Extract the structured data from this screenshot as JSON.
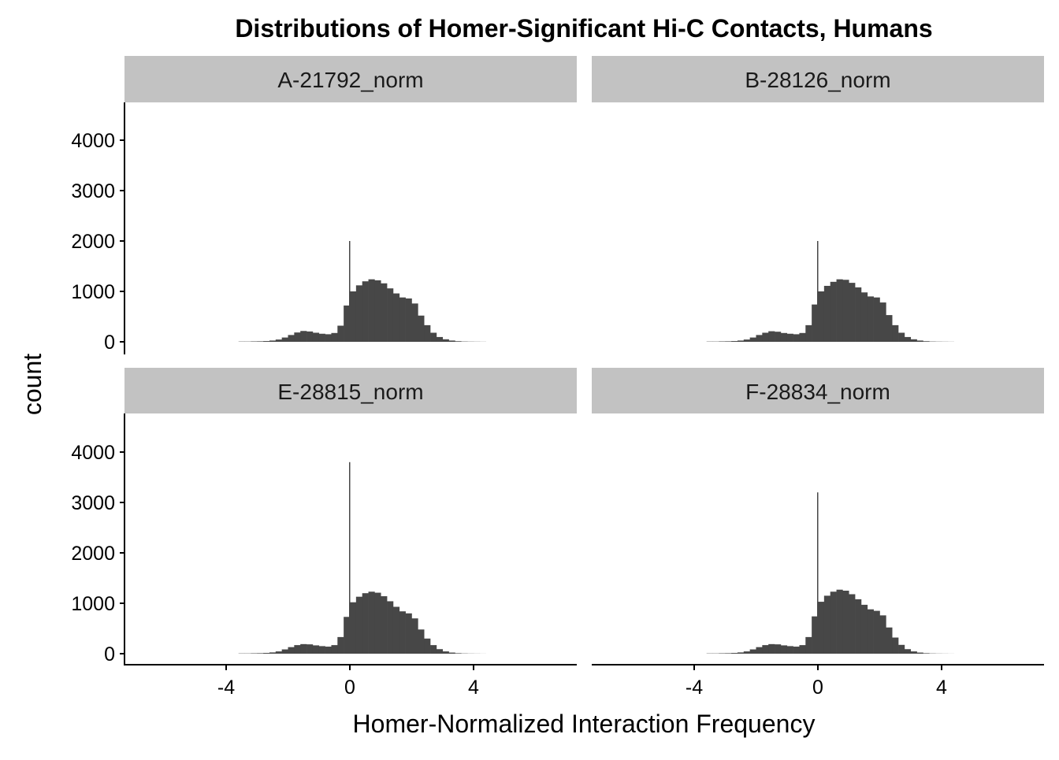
{
  "chart_data": {
    "type": "bar",
    "subtype": "faceted histogram",
    "title": "Distributions of Homer-Significant Hi-C Contacts, Humans",
    "xlabel": "Homer-Normalized Interaction Frequency",
    "ylabel": "count",
    "xlim": [
      -7.3,
      7.3
    ],
    "ylim": [
      0,
      4750
    ],
    "x_ticks": [
      -4,
      0,
      4
    ],
    "x_tick_labels": [
      "-4",
      "0",
      "4"
    ],
    "y_ticks": [
      0,
      1000,
      2000,
      3000,
      4000
    ],
    "y_tick_labels": [
      "0",
      "1000",
      "2000",
      "3000",
      "4000"
    ],
    "grid": false,
    "bar_color": "#474747",
    "strip_color": "#c2c2c2",
    "bin_start": -3.6,
    "bin_width": 0.2,
    "panels": [
      {
        "name": "A-21792_norm",
        "spike": {
          "x": 0,
          "count": 2000
        },
        "values": [
          5,
          5,
          8,
          10,
          15,
          25,
          45,
          85,
          135,
          185,
          215,
          205,
          180,
          160,
          150,
          175,
          320,
          720,
          1000,
          1120,
          1200,
          1240,
          1220,
          1160,
          1060,
          960,
          880,
          860,
          760,
          520,
          330,
          180,
          95,
          50,
          25,
          12,
          6,
          4,
          3,
          2
        ]
      },
      {
        "name": "B-28126_norm",
        "spike": {
          "x": 0,
          "count": 2000
        },
        "values": [
          5,
          5,
          8,
          10,
          15,
          25,
          45,
          85,
          135,
          180,
          210,
          200,
          175,
          160,
          150,
          175,
          330,
          740,
          1000,
          1110,
          1190,
          1240,
          1230,
          1170,
          1080,
          980,
          900,
          880,
          780,
          530,
          330,
          180,
          95,
          50,
          25,
          12,
          6,
          4,
          3,
          2
        ]
      },
      {
        "name": "E-28815_norm",
        "spike": {
          "x": 0,
          "count": 3800
        },
        "values": [
          5,
          5,
          8,
          10,
          15,
          25,
          45,
          85,
          130,
          170,
          190,
          185,
          165,
          150,
          140,
          170,
          330,
          730,
          1020,
          1130,
          1200,
          1230,
          1210,
          1140,
          1040,
          930,
          840,
          800,
          700,
          480,
          300,
          170,
          90,
          45,
          22,
          10,
          5,
          3,
          2,
          1
        ]
      },
      {
        "name": "F-28834_norm",
        "spike": {
          "x": 0,
          "count": 3200
        },
        "values": [
          5,
          5,
          8,
          10,
          15,
          25,
          45,
          85,
          130,
          170,
          190,
          185,
          165,
          150,
          140,
          170,
          330,
          740,
          1030,
          1150,
          1230,
          1270,
          1250,
          1180,
          1080,
          970,
          880,
          850,
          760,
          520,
          320,
          175,
          90,
          45,
          22,
          10,
          5,
          3,
          2,
          1
        ]
      }
    ]
  }
}
